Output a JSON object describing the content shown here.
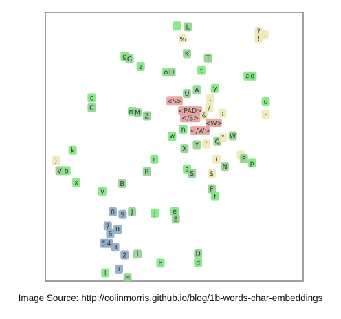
{
  "caption": "Image Source: http://colinmorris.github.io/blog/1b-words-char-embeddings",
  "colors": {
    "letter_lower": "#7ee67e",
    "letter_upper": "#8fd18f",
    "digit": "#8fa9c9",
    "special_token": "#e8a0a0",
    "punctuation": "#f0e6b4",
    "frame": "#808080"
  },
  "chart_data": {
    "type": "scatter",
    "title": "",
    "xlabel": "",
    "ylabel": "",
    "xlim": [
      0,
      100
    ],
    "ylim": [
      0,
      100
    ],
    "grid": false,
    "points": [
      {
        "t": "l",
        "x": 51.0,
        "y": 96.3,
        "g": "lower"
      },
      {
        "t": "L",
        "x": 55.3,
        "y": 96.0,
        "g": "upper"
      },
      {
        "t": "%",
        "x": 53.3,
        "y": 91.3,
        "g": "punct"
      },
      {
        "t": "?",
        "x": 84.0,
        "y": 94.3,
        "g": "punct"
      },
      {
        "t": "!",
        "x": 84.0,
        "y": 91.5,
        "g": "punct"
      },
      {
        "t": ".",
        "x": 86.3,
        "y": 92.8,
        "g": "punct"
      },
      {
        "t": "g",
        "x": 29.8,
        "y": 84.5,
        "g": "lower"
      },
      {
        "t": "G",
        "x": 31.8,
        "y": 83.5,
        "g": "upper"
      },
      {
        "t": "z",
        "x": 36.3,
        "y": 80.5,
        "g": "lower"
      },
      {
        "t": "K",
        "x": 55.0,
        "y": 85.5,
        "g": "upper"
      },
      {
        "t": "T",
        "x": 63.5,
        "y": 83.8,
        "g": "upper"
      },
      {
        "t": "o",
        "x": 46.5,
        "y": 78.3,
        "g": "lower"
      },
      {
        "t": "O",
        "x": 48.8,
        "y": 78.3,
        "g": "upper"
      },
      {
        "t": "t",
        "x": 60.8,
        "y": 79.0,
        "g": "lower"
      },
      {
        "t": "a",
        "x": 79.5,
        "y": 76.8,
        "g": "lower"
      },
      {
        "t": "q",
        "x": 81.5,
        "y": 76.8,
        "g": "lower"
      },
      {
        "t": "y",
        "x": 66.3,
        "y": 72.0,
        "g": "lower"
      },
      {
        "t": "A",
        "x": 59.0,
        "y": 71.3,
        "g": "upper"
      },
      {
        "t": "U",
        "x": 55.0,
        "y": 70.0,
        "g": "upper"
      },
      {
        "t": "c",
        "x": 16.5,
        "y": 68.3,
        "g": "lower"
      },
      {
        "t": "C",
        "x": 16.5,
        "y": 64.5,
        "g": "upper"
      },
      {
        "t": "<S>",
        "x": 50.0,
        "y": 67.0,
        "g": "special"
      },
      {
        "t": ",",
        "x": 64.5,
        "y": 68.0,
        "g": "punct"
      },
      {
        "t": "/",
        "x": 64.0,
        "y": 64.5,
        "g": "punct"
      },
      {
        "t": "u",
        "x": 86.8,
        "y": 66.8,
        "g": "lower"
      },
      {
        "t": "<PAD>",
        "x": 56.3,
        "y": 63.3,
        "g": "special"
      },
      {
        "t": "</S>",
        "x": 56.3,
        "y": 60.5,
        "g": "special"
      },
      {
        "t": "&",
        "x": 62.0,
        "y": 61.5,
        "g": "punct"
      },
      {
        "t": ":",
        "x": 69.3,
        "y": 62.3,
        "g": "punct"
      },
      {
        "t": "-",
        "x": 86.8,
        "y": 62.0,
        "g": "punct"
      },
      {
        "t": "m",
        "x": 32.8,
        "y": 63.0,
        "g": "lower"
      },
      {
        "t": "M",
        "x": 35.0,
        "y": 62.5,
        "g": "upper"
      },
      {
        "t": "Z",
        "x": 38.8,
        "y": 61.3,
        "g": "upper"
      },
      {
        "t": "<W>",
        "x": 65.8,
        "y": 58.5,
        "g": "special"
      },
      {
        "t": "</W>",
        "x": 60.3,
        "y": 55.5,
        "g": "special"
      },
      {
        "t": "n",
        "x": 53.5,
        "y": 56.0,
        "g": "lower"
      },
      {
        "t": "w",
        "x": 49.0,
        "y": 53.3,
        "g": "lower"
      },
      {
        "t": "W",
        "x": 73.5,
        "y": 53.5,
        "g": "upper"
      },
      {
        "t": "Q",
        "x": 67.3,
        "y": 51.3,
        "g": "upper"
      },
      {
        "t": "\"",
        "x": 69.5,
        "y": 52.8,
        "g": "punct"
      },
      {
        "t": "'",
        "x": 62.8,
        "y": 50.3,
        "g": "punct"
      },
      {
        "t": "X",
        "x": 54.0,
        "y": 48.5,
        "g": "upper"
      },
      {
        "t": "Y",
        "x": 59.0,
        "y": 50.0,
        "g": "upper"
      },
      {
        "t": "k",
        "x": 8.8,
        "y": 47.8,
        "g": "lower"
      },
      {
        "t": ";",
        "x": 76.8,
        "y": 46.0,
        "g": "punct"
      },
      {
        "t": "P",
        "x": 78.0,
        "y": 44.5,
        "g": "upper"
      },
      {
        "t": "p",
        "x": 81.3,
        "y": 42.8,
        "g": "lower"
      },
      {
        "t": ")",
        "x": 2.0,
        "y": 43.8,
        "g": "punct"
      },
      {
        "t": "r",
        "x": 41.8,
        "y": 44.3,
        "g": "lower"
      },
      {
        "t": "(",
        "x": 67.0,
        "y": 44.3,
        "g": "punct"
      },
      {
        "t": "N",
        "x": 70.3,
        "y": 41.5,
        "g": "upper"
      },
      {
        "t": "V",
        "x": 3.5,
        "y": 39.8,
        "g": "upper"
      },
      {
        "t": "b",
        "x": 6.3,
        "y": 39.8,
        "g": "lower"
      },
      {
        "t": "R",
        "x": 38.8,
        "y": 39.5,
        "g": "upper"
      },
      {
        "t": "s",
        "x": 55.0,
        "y": 40.5,
        "g": "lower"
      },
      {
        "t": "S",
        "x": 57.0,
        "y": 38.8,
        "g": "upper"
      },
      {
        "t": "$",
        "x": 65.0,
        "y": 38.8,
        "g": "punct"
      },
      {
        "t": "x",
        "x": 10.3,
        "y": 35.3,
        "g": "lower"
      },
      {
        "t": "B",
        "x": 28.8,
        "y": 34.8,
        "g": "upper"
      },
      {
        "t": "v",
        "x": 20.8,
        "y": 31.8,
        "g": "lower"
      },
      {
        "t": "F",
        "x": 65.0,
        "y": 32.8,
        "g": "upper"
      },
      {
        "t": "f",
        "x": 66.3,
        "y": 29.8,
        "g": "lower"
      },
      {
        "t": "0",
        "x": 25.0,
        "y": 23.8,
        "g": "digit"
      },
      {
        "t": "9",
        "x": 29.0,
        "y": 22.8,
        "g": "digit"
      },
      {
        "t": "J",
        "x": 32.8,
        "y": 23.8,
        "g": "upper"
      },
      {
        "t": "j",
        "x": 42.0,
        "y": 23.3,
        "g": "lower"
      },
      {
        "t": "e",
        "x": 50.0,
        "y": 24.0,
        "g": "lower"
      },
      {
        "t": "E",
        "x": 50.5,
        "y": 21.0,
        "g": "upper"
      },
      {
        "t": "7",
        "x": 23.0,
        "y": 18.3,
        "g": "digit"
      },
      {
        "t": "8",
        "x": 27.0,
        "y": 17.0,
        "g": "digit"
      },
      {
        "t": "6",
        "x": 24.0,
        "y": 15.3,
        "g": "digit"
      },
      {
        "t": "5",
        "x": 21.5,
        "y": 11.5,
        "g": "digit"
      },
      {
        "t": "4",
        "x": 23.5,
        "y": 11.5,
        "g": "digit"
      },
      {
        "t": "3",
        "x": 26.0,
        "y": 10.0,
        "g": "digit"
      },
      {
        "t": "2",
        "x": 29.8,
        "y": 7.0,
        "g": "digit"
      },
      {
        "t": "I",
        "x": 35.0,
        "y": 7.3,
        "g": "upper"
      },
      {
        "t": "h",
        "x": 44.3,
        "y": 3.8,
        "g": "lower"
      },
      {
        "t": "D",
        "x": 59.5,
        "y": 7.5,
        "g": "upper"
      },
      {
        "t": "d",
        "x": 59.5,
        "y": 4.0,
        "g": "lower"
      },
      {
        "t": "1",
        "x": 27.5,
        "y": 1.5,
        "g": "digit"
      },
      {
        "t": "i",
        "x": 22.0,
        "y": 0.0,
        "g": "lower"
      },
      {
        "t": "H",
        "x": 31.0,
        "y": -1.8,
        "g": "upper"
      }
    ]
  }
}
